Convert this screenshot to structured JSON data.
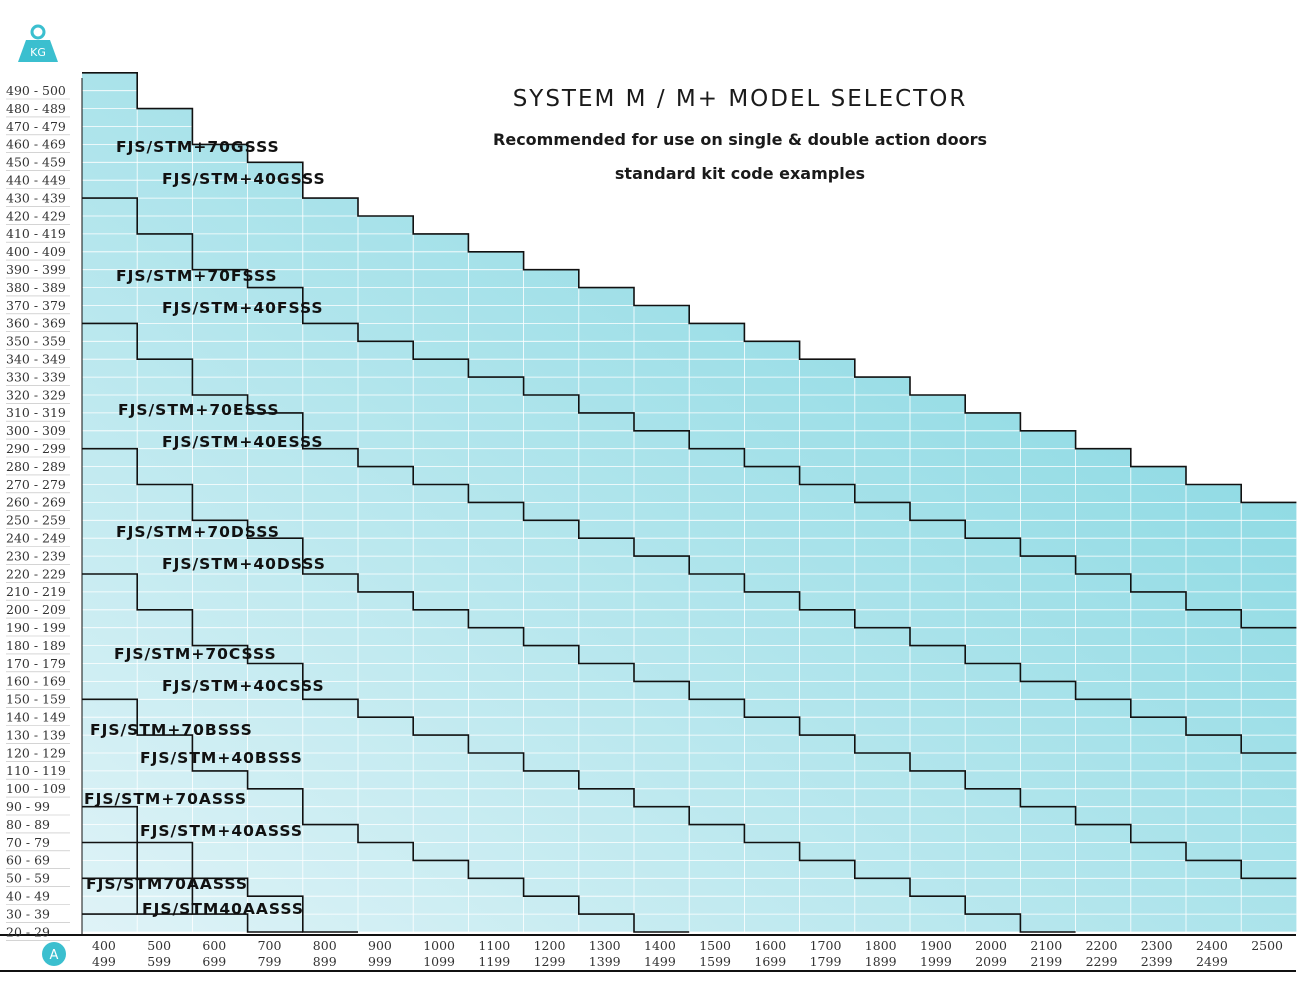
{
  "title": "SYSTEM M / M+ MODEL SELECTOR",
  "subtitle": "Recommended for use on single & double action doors",
  "subtitle2": "standard kit code examples",
  "icons": {
    "weight": "weight-kg-icon",
    "weight_label": "KG",
    "width": "width-a-icon",
    "width_label": "A"
  },
  "colors": {
    "light": "#dff3f7",
    "dark": "#77d3de",
    "grid": "#ffffff",
    "boundary": "#111111",
    "icon": "#3bbfcf"
  },
  "chart_data": {
    "type": "table",
    "y_axis_unit": "KG",
    "x_axis_unit": "A",
    "y_ticks": [
      "490 - 500",
      "480 - 489",
      "470 - 479",
      "460 - 469",
      "450 - 459",
      "440 - 449",
      "430 - 439",
      "420 - 429",
      "410 - 419",
      "400 - 409",
      "390 - 399",
      "380 - 389",
      "370 - 379",
      "360 - 369",
      "350 - 359",
      "340 - 349",
      "330 - 339",
      "320 - 329",
      "310 - 319",
      "300 - 309",
      "290 - 299",
      "280 - 289",
      "270 - 279",
      "260 - 269",
      "250 - 259",
      "240 - 249",
      "230 - 239",
      "220 - 229",
      "210 - 219",
      "200 - 209",
      "190 - 199",
      "180 - 189",
      "170 - 179",
      "160 - 169",
      "150 - 159",
      "140 - 149",
      "130 - 139",
      "120 - 129",
      "110 - 119",
      "100 - 109",
      "90 - 99",
      "80 - 89",
      "70 - 79",
      "60 - 69",
      "50 - 59",
      "40 - 49",
      "30 - 39",
      "20 - 29"
    ],
    "x_ticks": [
      [
        "400",
        "499"
      ],
      [
        "500",
        "599"
      ],
      [
        "600",
        "699"
      ],
      [
        "700",
        "799"
      ],
      [
        "800",
        "899"
      ],
      [
        "900",
        "999"
      ],
      [
        "1000",
        "1099"
      ],
      [
        "1100",
        "1199"
      ],
      [
        "1200",
        "1299"
      ],
      [
        "1300",
        "1399"
      ],
      [
        "1400",
        "1499"
      ],
      [
        "1500",
        "1599"
      ],
      [
        "1600",
        "1699"
      ],
      [
        "1700",
        "1799"
      ],
      [
        "1800",
        "1899"
      ],
      [
        "1900",
        "1999"
      ],
      [
        "2000",
        "2099"
      ],
      [
        "2100",
        "2199"
      ],
      [
        "2200",
        "2299"
      ],
      [
        "2300",
        "2399"
      ],
      [
        "2400",
        "2499"
      ],
      [
        "2500",
        ""
      ]
    ],
    "max_weight_per_column": [
      500,
      480,
      460,
      450,
      430,
      420,
      410,
      400,
      390,
      380,
      370,
      360,
      350,
      340,
      330,
      320,
      310,
      300,
      290,
      280,
      270,
      260
    ],
    "models": [
      {
        "label": "FJS/STM+70GSSS"
      },
      {
        "label": "FJS/STM+40GSSS"
      },
      {
        "label": "FJS/STM+70FSSS"
      },
      {
        "label": "FJS/STM+40FSSS"
      },
      {
        "label": "FJS/STM+70ESSS"
      },
      {
        "label": "FJS/STM+40ESSS"
      },
      {
        "label": "FJS/STM+70DSSS"
      },
      {
        "label": "FJS/STM+40DSSS"
      },
      {
        "label": "FJS/STM+70CSSS"
      },
      {
        "label": "FJS/STM+40CSSS"
      },
      {
        "label": "FJS/STM+70BSSS"
      },
      {
        "label": "FJS/STM+40BSSS"
      },
      {
        "label": "FJS/STM+70ASSS"
      },
      {
        "label": "FJS/STM+40ASSS"
      },
      {
        "label": "FJS/STM70AASSS"
      },
      {
        "label": "FJS/STM40AASSS"
      }
    ],
    "boundaries_start_weight": [
      430,
      360,
      290,
      220,
      150,
      90,
      70,
      50,
      30
    ]
  }
}
